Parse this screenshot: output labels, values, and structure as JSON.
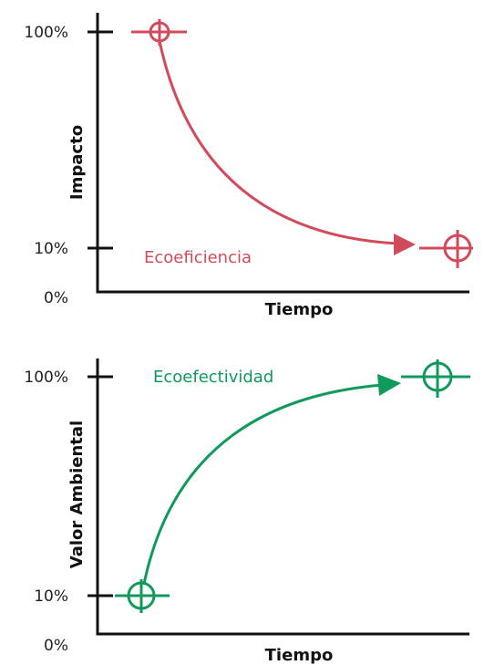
{
  "panels": [
    {
      "y_ticks": [
        "100%",
        "10%",
        "0%"
      ],
      "y_title": "Impacto",
      "x_title": "Tiempo",
      "curve_label": "Ecoeficiencia"
    },
    {
      "y_ticks": [
        "100%",
        "10%",
        "0%"
      ],
      "y_title": "Valor Ambiental",
      "x_title": "Tiempo",
      "curve_label": "Ecoefectividad"
    }
  ]
}
